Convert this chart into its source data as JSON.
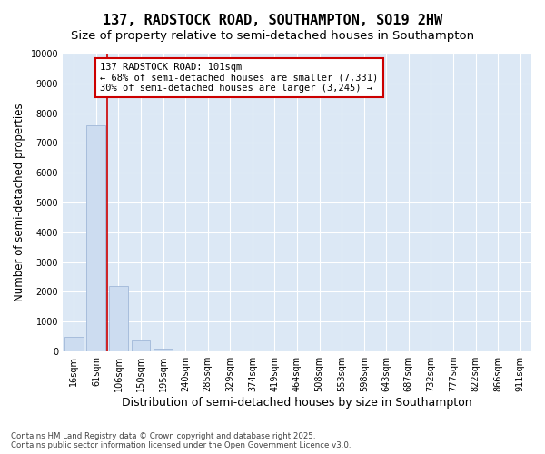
{
  "title_line1": "137, RADSTOCK ROAD, SOUTHAMPTON, SO19 2HW",
  "title_line2": "Size of property relative to semi-detached houses in Southampton",
  "xlabel": "Distribution of semi-detached houses by size in Southampton",
  "ylabel": "Number of semi-detached properties",
  "categories": [
    "16sqm",
    "61sqm",
    "106sqm",
    "150sqm",
    "195sqm",
    "240sqm",
    "285sqm",
    "329sqm",
    "374sqm",
    "419sqm",
    "464sqm",
    "508sqm",
    "553sqm",
    "598sqm",
    "643sqm",
    "687sqm",
    "732sqm",
    "777sqm",
    "822sqm",
    "866sqm",
    "911sqm"
  ],
  "values": [
    500,
    7600,
    2200,
    400,
    100,
    0,
    0,
    0,
    0,
    0,
    0,
    0,
    0,
    0,
    0,
    0,
    0,
    0,
    0,
    0,
    0
  ],
  "bar_color": "#ccdcf0",
  "bar_edge_color": "#a0b8d8",
  "vline_x": 1.5,
  "vline_color": "#cc0000",
  "annotation_text": "137 RADSTOCK ROAD: 101sqm\n← 68% of semi-detached houses are smaller (7,331)\n30% of semi-detached houses are larger (3,245) →",
  "annotation_box_color": "#cc0000",
  "annotation_text_color": "#000000",
  "ylim": [
    0,
    10000
  ],
  "yticks": [
    0,
    1000,
    2000,
    3000,
    4000,
    5000,
    6000,
    7000,
    8000,
    9000,
    10000
  ],
  "background_color": "#ffffff",
  "plot_bg_color": "#dce8f5",
  "grid_color": "#ffffff",
  "footer_text": "Contains HM Land Registry data © Crown copyright and database right 2025.\nContains public sector information licensed under the Open Government Licence v3.0.",
  "title_fontsize": 11,
  "subtitle_fontsize": 9.5,
  "tick_fontsize": 7,
  "ylabel_fontsize": 8.5,
  "xlabel_fontsize": 9
}
